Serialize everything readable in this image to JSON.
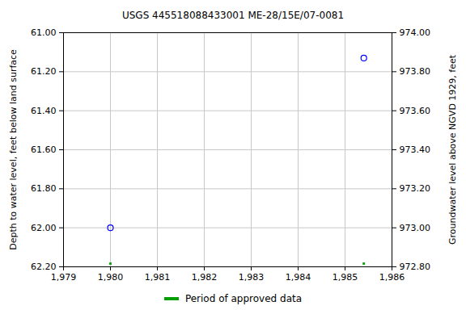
{
  "chart_data": {
    "type": "scatter",
    "title": "USGS 445518088433001 ME-28/15E/07-0081",
    "x": [
      1980.0,
      1985.4
    ],
    "values": [
      62.0,
      61.13
    ],
    "color": "#0000ff",
    "marker": "circle",
    "xlim": [
      1979,
      1986
    ],
    "xticks": [
      1979,
      1980,
      1981,
      1982,
      1983,
      1984,
      1985,
      1986
    ],
    "ylim": [
      62.2,
      61.0
    ],
    "yticks": [
      {
        "value": 61.0,
        "label": "61.00"
      },
      {
        "value": 61.2,
        "label": "61.20"
      },
      {
        "value": 61.4,
        "label": "61.40"
      },
      {
        "value": 61.6,
        "label": "61.60"
      },
      {
        "value": 61.8,
        "label": "61.80"
      },
      {
        "value": 62.0,
        "label": "62.00"
      },
      {
        "value": 62.2,
        "label": "62.20"
      }
    ],
    "y_label": "Depth to water level, feet below land surface",
    "y2lim": [
      972.8,
      974.0
    ],
    "y2ticks": [
      {
        "value": 974.0,
        "label": "974.00"
      },
      {
        "value": 973.8,
        "label": "973.80"
      },
      {
        "value": 973.6,
        "label": "973.60"
      },
      {
        "value": 973.4,
        "label": "973.40"
      },
      {
        "value": 973.2,
        "label": "973.20"
      },
      {
        "value": 973.0,
        "label": "973.00"
      },
      {
        "value": 972.8,
        "label": "972.80"
      }
    ],
    "y2_label": "Groundwater level above NGVD 1929, feet",
    "grid": true,
    "approved_periods": {
      "name": "Period of approved data",
      "color": "#00a000",
      "x": [
        1980.0,
        1985.4
      ]
    }
  }
}
